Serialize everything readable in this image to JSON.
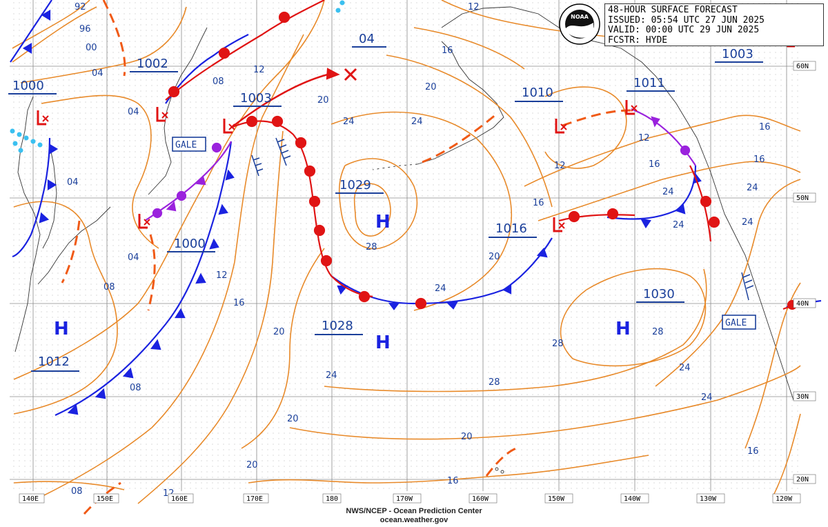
{
  "title_box": {
    "line1": "48-HOUR SURFACE FORECAST",
    "issued": "ISSUED: 05:54 UTC 27 JUN 2025",
    "valid": "VALID:  00:00 UTC 29 JUN 2025",
    "forecaster": "FCSTR: HYDE"
  },
  "logo": {
    "text": "NOAA"
  },
  "footer": {
    "line1": "NWS/NCEP - Ocean Prediction Center",
    "line2": "ocean.weather.gov"
  },
  "colors": {
    "isobar": "#e88a2a",
    "label": "#1a3f9a",
    "cold_front": "#1a22e0",
    "warm_front": "#e01414",
    "occluded": "#9a22dd",
    "trough": "#f05a16",
    "grid": "#8a8a8a"
  },
  "longitudes": [
    "140E",
    "150E",
    "160E",
    "170E",
    "180",
    "170W",
    "160W",
    "150W",
    "140W",
    "130W",
    "120W"
  ],
  "latitudes": [
    "60N",
    "50N",
    "40N",
    "30N",
    "20N"
  ],
  "pressure_centers": [
    {
      "type": "H",
      "value": "1029"
    },
    {
      "type": "H",
      "value": "1028"
    },
    {
      "type": "H",
      "value": "1030"
    },
    {
      "type": "H",
      "value": "1012"
    },
    {
      "type": "L",
      "value": "1000"
    },
    {
      "type": "L",
      "value": "1002"
    },
    {
      "type": "L",
      "value": "1003"
    },
    {
      "type": "L",
      "value": "1000"
    },
    {
      "type": "L",
      "value": "1016"
    },
    {
      "type": "L",
      "value": "1010"
    },
    {
      "type": "L",
      "value": "1011"
    },
    {
      "type": "L",
      "value": "1003"
    },
    {
      "type": "X",
      "value": "04"
    }
  ],
  "warnings": [
    "GALE",
    "GALE"
  ],
  "isobar_labels": [
    "92",
    "96",
    "00",
    "04",
    "04",
    "04",
    "04",
    "08",
    "08",
    "08",
    "08",
    "12",
    "12",
    "12",
    "12",
    "12",
    "12",
    "16",
    "16",
    "16",
    "16",
    "16",
    "16",
    "20",
    "20",
    "20",
    "20",
    "20",
    "20",
    "20",
    "24",
    "24",
    "24",
    "24",
    "24",
    "24",
    "24",
    "28",
    "28",
    "28"
  ]
}
